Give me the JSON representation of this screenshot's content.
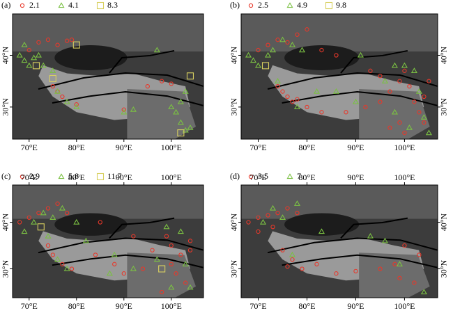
{
  "lon_range": [
    66.5,
    106.8
  ],
  "lat_range": [
    23.8,
    48
  ],
  "lon_ticks": [
    {
      "value": 70,
      "label": "70°E"
    },
    {
      "value": 80,
      "label": "80°E"
    },
    {
      "value": 90,
      "label": "90°E"
    },
    {
      "value": 100,
      "label": "100°E"
    }
  ],
  "lat_ticks": [
    {
      "value": 30,
      "label": "30°N"
    },
    {
      "value": 40,
      "label": "40°N"
    }
  ],
  "panels": [
    {
      "label": "(a)",
      "legend": [
        {
          "symbol": "circle",
          "color": "#e8382a",
          "text": "2.1"
        },
        {
          "symbol": "triangle",
          "color": "#7bc043",
          "text": "4.1"
        },
        {
          "symbol": "square",
          "color": "#d8d060",
          "text": "8.3"
        }
      ],
      "points": [
        [
          72,
          42.5,
          0
        ],
        [
          74,
          43,
          0
        ],
        [
          76,
          42,
          0
        ],
        [
          78,
          42.8,
          0
        ],
        [
          70,
          41,
          0
        ],
        [
          75,
          34,
          0
        ],
        [
          77,
          32,
          0
        ],
        [
          76,
          33,
          0
        ],
        [
          95,
          34,
          0
        ],
        [
          100,
          34.5,
          0
        ],
        [
          98,
          35,
          0
        ],
        [
          80,
          30.5,
          0
        ],
        [
          90,
          29.5,
          0
        ],
        [
          79,
          43,
          0
        ],
        [
          68,
          40,
          1
        ],
        [
          69,
          39,
          1
        ],
        [
          70,
          38,
          1
        ],
        [
          71,
          39.5,
          1
        ],
        [
          72,
          40,
          1
        ],
        [
          73,
          38,
          1
        ],
        [
          69,
          42,
          1
        ],
        [
          75,
          37,
          1
        ],
        [
          76,
          33,
          1
        ],
        [
          78,
          31,
          1
        ],
        [
          80,
          30,
          1
        ],
        [
          97,
          41,
          1
        ],
        [
          100,
          30,
          1
        ],
        [
          101,
          29,
          1
        ],
        [
          102,
          27,
          1
        ],
        [
          103,
          25.5,
          1
        ],
        [
          104,
          26,
          1
        ],
        [
          102,
          31,
          1
        ],
        [
          103,
          33,
          1
        ],
        [
          92,
          29.5,
          1
        ],
        [
          90,
          29,
          1
        ],
        [
          80,
          42,
          2
        ],
        [
          71.5,
          38,
          2
        ],
        [
          75,
          35.5,
          2
        ],
        [
          104,
          36,
          2
        ],
        [
          102,
          25,
          2
        ]
      ]
    },
    {
      "label": "(b)",
      "legend": [
        {
          "symbol": "circle",
          "color": "#e8382a",
          "text": "2.5"
        },
        {
          "symbol": "triangle",
          "color": "#7bc043",
          "text": "4.9"
        },
        {
          "symbol": "square",
          "color": "#d8d060",
          "text": "9.8"
        }
      ],
      "points": [
        [
          70,
          41,
          0
        ],
        [
          72,
          42,
          0
        ],
        [
          74,
          43,
          0
        ],
        [
          76,
          42.5,
          0
        ],
        [
          78,
          44,
          0
        ],
        [
          80,
          45,
          0
        ],
        [
          83,
          41,
          0
        ],
        [
          86,
          40,
          0
        ],
        [
          74,
          34,
          0
        ],
        [
          75,
          33,
          0
        ],
        [
          76,
          32,
          0
        ],
        [
          77,
          31,
          0
        ],
        [
          78,
          31.5,
          0
        ],
        [
          80,
          30,
          0
        ],
        [
          83,
          29,
          0
        ],
        [
          88,
          29,
          0
        ],
        [
          92,
          30,
          0
        ],
        [
          95,
          31,
          0
        ],
        [
          97,
          33,
          0
        ],
        [
          99,
          35,
          0
        ],
        [
          100,
          37,
          0
        ],
        [
          101,
          34,
          0
        ],
        [
          102,
          31,
          0
        ],
        [
          103,
          29,
          0
        ],
        [
          104,
          27,
          0
        ],
        [
          99,
          27,
          0
        ],
        [
          97,
          26,
          0
        ],
        [
          95,
          36,
          0
        ],
        [
          93,
          37,
          0
        ],
        [
          100,
          25,
          0
        ],
        [
          104,
          32,
          0
        ],
        [
          105,
          35,
          0
        ],
        [
          68,
          40,
          1
        ],
        [
          69,
          39,
          1
        ],
        [
          70,
          38,
          1
        ],
        [
          72,
          40,
          1
        ],
        [
          73,
          41,
          1
        ],
        [
          75,
          43,
          1
        ],
        [
          77,
          42,
          1
        ],
        [
          79,
          41,
          1
        ],
        [
          74,
          35,
          1
        ],
        [
          78,
          30,
          1
        ],
        [
          82,
          33,
          1
        ],
        [
          86,
          33,
          1
        ],
        [
          90,
          31,
          1
        ],
        [
          96,
          35,
          1
        ],
        [
          98,
          38,
          1
        ],
        [
          100,
          38,
          1
        ],
        [
          102,
          37,
          1
        ],
        [
          103,
          33,
          1
        ],
        [
          104,
          28,
          1
        ],
        [
          101,
          26,
          1
        ],
        [
          98,
          29,
          1
        ],
        [
          105,
          25,
          1
        ],
        [
          91,
          40,
          1
        ],
        [
          71.5,
          38,
          2
        ]
      ]
    },
    {
      "label": "(c)",
      "legend": [
        {
          "symbol": "circle",
          "color": "#e8382a",
          "text": "2.9"
        },
        {
          "symbol": "triangle",
          "color": "#7bc043",
          "text": "5.8"
        },
        {
          "symbol": "square",
          "color": "#d8d060",
          "text": "11.7"
        }
      ],
      "points": [
        [
          68,
          40,
          0
        ],
        [
          70,
          41,
          0
        ],
        [
          72,
          42,
          0
        ],
        [
          74,
          43,
          0
        ],
        [
          76,
          44,
          0
        ],
        [
          78,
          42,
          0
        ],
        [
          74,
          35,
          0
        ],
        [
          75,
          33,
          0
        ],
        [
          77,
          31,
          0
        ],
        [
          79,
          30,
          0
        ],
        [
          84,
          33,
          0
        ],
        [
          88,
          31,
          0
        ],
        [
          90,
          29,
          0
        ],
        [
          94,
          30,
          0
        ],
        [
          96,
          34,
          0
        ],
        [
          99,
          37,
          0
        ],
        [
          100,
          35,
          0
        ],
        [
          102,
          33,
          0
        ],
        [
          104,
          34,
          0
        ],
        [
          104,
          36,
          0
        ],
        [
          101,
          29,
          0
        ],
        [
          103,
          27,
          0
        ],
        [
          98,
          25,
          0
        ],
        [
          92,
          37,
          0
        ],
        [
          85,
          40,
          0
        ],
        [
          100,
          31,
          0
        ],
        [
          69,
          38,
          1
        ],
        [
          71,
          40,
          1
        ],
        [
          73,
          42,
          1
        ],
        [
          75,
          41,
          1
        ],
        [
          77,
          43,
          1
        ],
        [
          80,
          40,
          1
        ],
        [
          74,
          37,
          1
        ],
        [
          76,
          32,
          1
        ],
        [
          78,
          30,
          1
        ],
        [
          82,
          36,
          1
        ],
        [
          88,
          33,
          1
        ],
        [
          92,
          30,
          1
        ],
        [
          97,
          32,
          1
        ],
        [
          99,
          39,
          1
        ],
        [
          102,
          38,
          1
        ],
        [
          103,
          31,
          1
        ],
        [
          104,
          26,
          1
        ],
        [
          100,
          26,
          1
        ],
        [
          87,
          29,
          1
        ],
        [
          72.5,
          39,
          2
        ],
        [
          98,
          30,
          2
        ]
      ]
    },
    {
      "label": "(d)",
      "legend": [
        {
          "symbol": "circle",
          "color": "#e8382a",
          "text": "3.5"
        },
        {
          "symbol": "triangle",
          "color": "#7bc043",
          "text": "7"
        }
      ],
      "points": [
        [
          68,
          40,
          0
        ],
        [
          70,
          41,
          0
        ],
        [
          72,
          41.5,
          0
        ],
        [
          74,
          42,
          0
        ],
        [
          76,
          43,
          0
        ],
        [
          78,
          42,
          0
        ],
        [
          70,
          38,
          0
        ],
        [
          73,
          39,
          0
        ],
        [
          75,
          34,
          0
        ],
        [
          77,
          32,
          0
        ],
        [
          76,
          30.5,
          0
        ],
        [
          79,
          30,
          0
        ],
        [
          82,
          31,
          0
        ],
        [
          86,
          29,
          0
        ],
        [
          90,
          29.5,
          0
        ],
        [
          95,
          30,
          0
        ],
        [
          98,
          31,
          0
        ],
        [
          100,
          35,
          0
        ],
        [
          103,
          33,
          0
        ],
        [
          102,
          27,
          0
        ],
        [
          99,
          28,
          0
        ],
        [
          71,
          40,
          1
        ],
        [
          73,
          43,
          1
        ],
        [
          75,
          41,
          1
        ],
        [
          78,
          44,
          1
        ],
        [
          83,
          38,
          1
        ],
        [
          93,
          37,
          1
        ],
        [
          96,
          36,
          1
        ],
        [
          77,
          33,
          1
        ],
        [
          99,
          31,
          1
        ],
        [
          104,
          25,
          1
        ]
      ]
    }
  ]
}
